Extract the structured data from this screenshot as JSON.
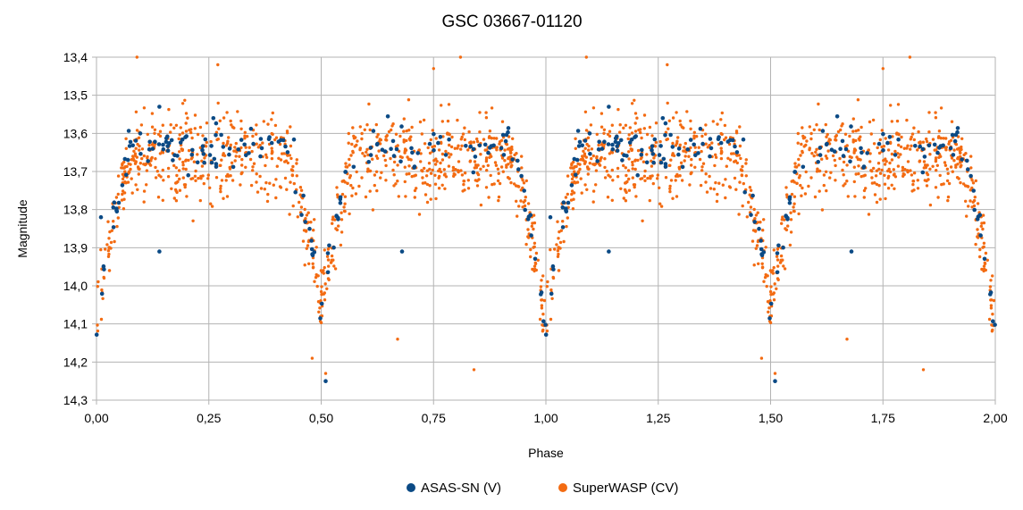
{
  "chart_data": {
    "type": "scatter",
    "title": "GSC 03667-01120",
    "xlabel": "Phase",
    "ylabel": "Magnitude",
    "xlim": [
      0,
      2
    ],
    "ylim": [
      13.4,
      14.3
    ],
    "y_inverted": true,
    "grid": true,
    "legend_position": "bottom",
    "x_ticks": [
      "0,00",
      "0,25",
      "0,50",
      "0,75",
      "1,00",
      "1,25",
      "1,50",
      "1,75",
      "2,00"
    ],
    "y_ticks": [
      "13,4",
      "13,5",
      "13,6",
      "13,7",
      "13,8",
      "13,9",
      "14,0",
      "14,1",
      "14,2",
      "14,3"
    ],
    "series": [
      {
        "name": "ASAS-SN (V)",
        "color": "#0b4a85",
        "points_per_cycle": 170,
        "light_curve": {
          "max_mag": 13.62,
          "primary_min_mag": 14.11,
          "secondary_min_mag": 14.05,
          "scatter_mag": 0.03
        },
        "outliers": [
          [
            0.01,
            13.82
          ],
          [
            0.14,
            13.91
          ],
          [
            0.66,
            13.62
          ],
          [
            0.68,
            13.91
          ],
          [
            0.51,
            14.25
          ],
          [
            0.14,
            13.53
          ],
          [
            0.26,
            13.56
          ]
        ]
      },
      {
        "name": "SuperWASP (CV)",
        "color": "#f36b12",
        "points_per_cycle": 950,
        "light_curve": {
          "max_mag": 13.645,
          "primary_min_mag": 14.1,
          "secondary_min_mag": 14.05,
          "scatter_mag": 0.055
        },
        "outliers": [
          [
            0.09,
            13.4
          ],
          [
            0.27,
            13.42
          ],
          [
            0.48,
            14.19
          ],
          [
            0.51,
            14.23
          ],
          [
            0.67,
            14.14
          ],
          [
            0.84,
            14.22
          ],
          [
            0.81,
            13.4
          ],
          [
            0.75,
            13.43
          ]
        ]
      }
    ]
  }
}
